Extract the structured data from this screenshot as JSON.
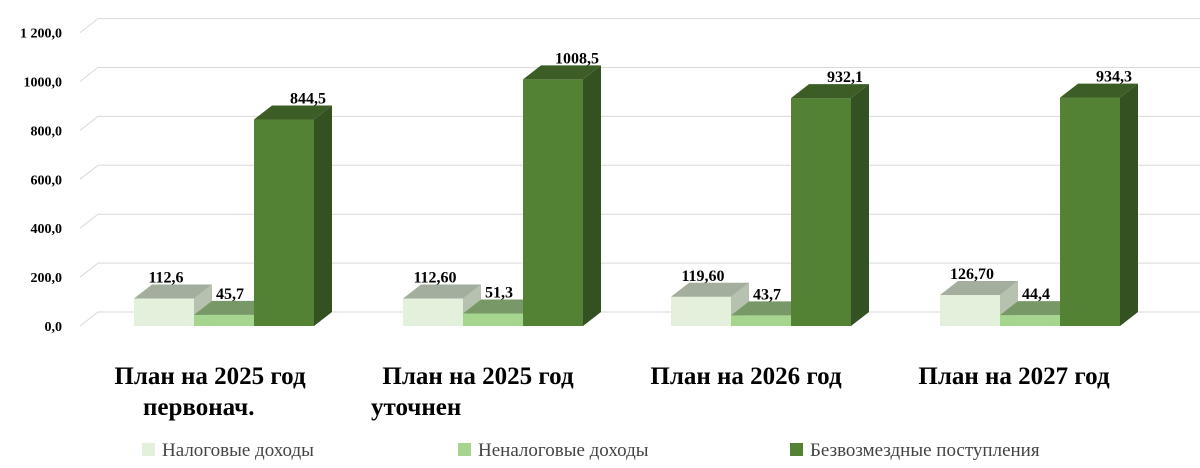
{
  "chart_data": {
    "type": "bar",
    "title": "",
    "xlabel": "",
    "ylabel": "",
    "ylim": [
      0,
      1200
    ],
    "yticks": [
      "0,0",
      "200,0",
      "400,0",
      "600,0",
      "800,0",
      "1000,0",
      "1 200,0"
    ],
    "grid": true,
    "legend_position": "bottom",
    "categories": [
      [
        "План на 2025 год",
        "первонач."
      ],
      [
        "План на 2025 год",
        "уточнен"
      ],
      [
        "План на 2026 год"
      ],
      [
        "План на 2027 год"
      ]
    ],
    "series": [
      {
        "name": "Налоговые доходы",
        "values": [
          112.6,
          112.6,
          119.6,
          126.7
        ],
        "labels": [
          "112,6",
          "112,60",
          "119,60",
          "126,70"
        ],
        "color": "#e3f1dc"
      },
      {
        "name": "Неналоговые доходы",
        "values": [
          45.7,
          51.3,
          43.7,
          44.4
        ],
        "labels": [
          "45,7",
          "51,3",
          "43,7",
          "44,4"
        ],
        "color": "#a6d58f"
      },
      {
        "name": "Безвозмездные поступления",
        "values": [
          844.5,
          1008.5,
          932.1,
          934.3
        ],
        "labels": [
          "844,5",
          "1008,5",
          "932,1",
          "934,3"
        ],
        "color": "#548235"
      }
    ]
  }
}
